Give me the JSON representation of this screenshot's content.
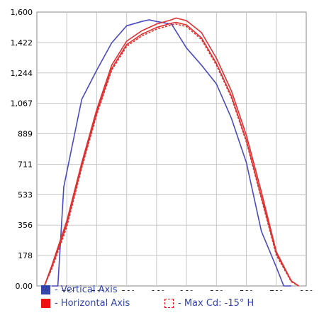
{
  "chart_data": {
    "type": "line",
    "title": "",
    "xlabel": "",
    "ylabel": "",
    "xlim": [
      -90,
      90
    ],
    "ylim": [
      0,
      1600
    ],
    "grid": true,
    "legend_position": "bottom",
    "y_ticks": [
      "0.00",
      "178",
      "356",
      "533",
      "711",
      "889",
      "1,067",
      "1,244",
      "1,422",
      "1,600"
    ],
    "x_ticks": [
      {
        "value": -70,
        "label": "-70°"
      },
      {
        "value": -50,
        "label": "-50°"
      },
      {
        "value": -30,
        "label": "-30°"
      },
      {
        "value": -10,
        "label": "-10°"
      },
      {
        "value": 10,
        "label": "10°"
      },
      {
        "value": 30,
        "label": "30°"
      },
      {
        "value": 50,
        "label": "50°"
      },
      {
        "value": 70,
        "label": "70°"
      },
      {
        "value": 90,
        "label": "90°"
      }
    ],
    "series": [
      {
        "name": "- Vertical Axis",
        "color": "#4a4ac0",
        "dash": "none",
        "x": [
          -80,
          -76,
          -72,
          -60,
          -50,
          -40,
          -30,
          -20,
          -15,
          -10,
          0,
          10,
          20,
          30,
          40,
          50,
          60,
          70,
          75,
          80
        ],
        "y": [
          0,
          0,
          580,
          1090,
          1260,
          1420,
          1520,
          1545,
          1555,
          1545,
          1530,
          1390,
          1290,
          1180,
          980,
          720,
          320,
          110,
          0,
          0
        ]
      },
      {
        "name": "- Horizontal Axis",
        "color": "#e03030",
        "dash": "none",
        "x": [
          -85,
          -80,
          -70,
          -60,
          -50,
          -40,
          -30,
          -20,
          -10,
          0,
          3,
          10,
          20,
          30,
          40,
          50,
          60,
          70,
          80,
          85
        ],
        "y": [
          0,
          120,
          380,
          720,
          1030,
          1290,
          1430,
          1490,
          1530,
          1555,
          1565,
          1550,
          1480,
          1330,
          1140,
          880,
          550,
          200,
          30,
          0
        ]
      },
      {
        "name": "",
        "color": "#e03030",
        "dash": "none",
        "x": [
          -85,
          -80,
          -70,
          -60,
          -50,
          -40,
          -30,
          -20,
          -10,
          0,
          3,
          10,
          20,
          30,
          40,
          50,
          60,
          70,
          80,
          85
        ],
        "y": [
          0,
          110,
          360,
          700,
          1010,
          1270,
          1410,
          1470,
          1510,
          1535,
          1540,
          1525,
          1450,
          1300,
          1110,
          850,
          520,
          190,
          30,
          0
        ]
      },
      {
        "name": "- Max Cd: -15° H",
        "color": "#e03030",
        "dash": "3,2",
        "x": [
          -85,
          -80,
          -70,
          -60,
          -50,
          -40,
          -30,
          -20,
          -10,
          0,
          3,
          10,
          20,
          30,
          40,
          50,
          60,
          70,
          80,
          85
        ],
        "y": [
          0,
          100,
          345,
          690,
          1000,
          1260,
          1400,
          1460,
          1500,
          1525,
          1530,
          1515,
          1440,
          1290,
          1100,
          840,
          510,
          180,
          25,
          0
        ]
      }
    ]
  },
  "legend": {
    "vertical": {
      "label": "- Vertical Axis",
      "color": "#3344aa"
    },
    "horizontal": {
      "label": "- Horizontal Axis",
      "color": "#ee1111"
    },
    "maxcd": {
      "label": "- Max Cd: -15° H",
      "color": "#ee1111"
    }
  }
}
